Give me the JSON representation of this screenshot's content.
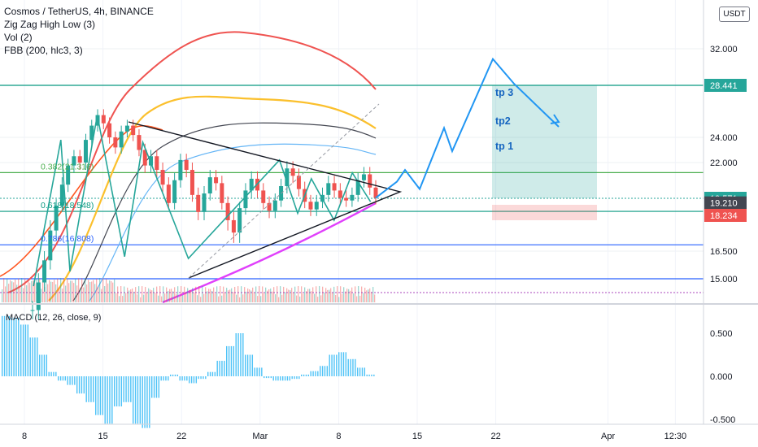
{
  "header": {
    "title": "Cosmos / TetherUS, 4h, BINANCE",
    "indicators": [
      "Zig Zag High Low (3)",
      "Vol (2)",
      "FBB (200, hlc3, 3)"
    ],
    "currency": "USDT"
  },
  "price_axis": {
    "ticks": [
      {
        "label": "32.000",
        "v": 32.0
      },
      {
        "label": "24.000",
        "v": 24.0
      },
      {
        "label": "22.000",
        "v": 22.0
      },
      {
        "label": "16.500",
        "v": 16.5
      },
      {
        "label": "15.000",
        "v": 15.0
      }
    ],
    "badges": [
      {
        "label": "28.441",
        "v": 28.441,
        "color": "#26a69a"
      },
      {
        "label": "19.571",
        "v": 19.571,
        "color": "#26a69a"
      },
      {
        "label": "58:34",
        "v": 19.0,
        "color": "#26a69a"
      },
      {
        "label": "19.210",
        "v": 19.21,
        "color": "#434651"
      },
      {
        "label": "18.234",
        "v": 18.234,
        "color": "#ef5350"
      }
    ]
  },
  "macd_axis": {
    "label": "MACD (12, 26, close, 9)",
    "ticks": [
      {
        "label": "0.500",
        "v": 0.5
      },
      {
        "label": "0.000",
        "v": 0.0
      },
      {
        "label": "-0.500",
        "v": -0.5
      }
    ]
  },
  "time_axis": {
    "ticks": [
      {
        "label": "8",
        "d": 0
      },
      {
        "label": "15",
        "d": 7
      },
      {
        "label": "22",
        "d": 14
      },
      {
        "label": "Mar",
        "d": 21
      },
      {
        "label": "8",
        "d": 28
      },
      {
        "label": "15",
        "d": 35
      },
      {
        "label": "22",
        "d": 42
      },
      {
        "label": "Apr",
        "d": 52
      },
      {
        "label": "12:30",
        "d": 58
      }
    ]
  },
  "fib": [
    {
      "label": "0.382(21.316)",
      "v": 21.316,
      "color": "#4caf50"
    },
    {
      "label": "0.618(18.548)",
      "v": 18.548,
      "color": "#089981"
    },
    {
      "label": "0.786(16.808)",
      "v": 16.808,
      "color": "#2962ff"
    }
  ],
  "levels": [
    {
      "v": 28.441,
      "color": "#089981"
    },
    {
      "v": 21.316,
      "color": "#4caf50"
    },
    {
      "v": 18.548,
      "color": "#089981"
    },
    {
      "v": 16.808,
      "color": "#2962ff"
    },
    {
      "v": 15.0,
      "color": "#2962ff"
    }
  ],
  "targets": [
    "tp 3",
    "tp2",
    "tp 1"
  ],
  "chart_data": {
    "type": "candlestick",
    "title": "Cosmos / TetherUS, 4h, BINANCE",
    "price_range": [
      13.8,
      34.0
    ],
    "closes": [
      13.3,
      14.8,
      16.0,
      17.5,
      19.0,
      20.5,
      21.8,
      22.5,
      22.0,
      23.8,
      25.0,
      25.9,
      25.2,
      24.0,
      23.2,
      24.5,
      25.0,
      24.2,
      23.0,
      21.8,
      22.5,
      21.5,
      20.5,
      19.2,
      20.8,
      22.2,
      21.5,
      19.8,
      18.5,
      19.9,
      21.0,
      20.6,
      19.2,
      18.0,
      17.4,
      18.8,
      20.1,
      20.9,
      20.1,
      19.2,
      18.6,
      19.4,
      20.4,
      21.6,
      21.1,
      20.2,
      19.3,
      18.7,
      19.3,
      19.8,
      20.6,
      20.1,
      19.6,
      19.4,
      19.8,
      20.8,
      21.2,
      20.3,
      19.6
    ],
    "triangle": {
      "upper": [
        [
          2,
          26.0
        ],
        [
          14,
          22.3
        ]
      ],
      "lower": [
        [
          2,
          16.0
        ],
        [
          14,
          19.6
        ]
      ]
    },
    "projection_path": [
      19.6,
      20.7,
      21.5,
      20.2,
      24.8,
      22.9,
      31.0,
      28.6,
      24.9
    ],
    "trade_box": {
      "entry": 19.571,
      "target": 28.441,
      "stop": 18.234
    },
    "macd": {
      "range": [
        -0.5,
        0.75
      ],
      "values": [
        0.7,
        0.68,
        0.6,
        0.45,
        0.25,
        0.05,
        -0.05,
        -0.1,
        -0.2,
        -0.3,
        -0.45,
        -0.55,
        -0.35,
        -0.3,
        -0.55,
        -0.6,
        -0.25,
        -0.05,
        0.02,
        -0.05,
        -0.08,
        -0.03,
        0.05,
        0.18,
        0.35,
        0.5,
        0.25,
        0.1,
        -0.02,
        -0.05,
        -0.05,
        -0.03,
        0.02,
        0.06,
        0.12,
        0.25,
        0.28,
        0.2,
        0.1,
        0.02
      ]
    }
  }
}
